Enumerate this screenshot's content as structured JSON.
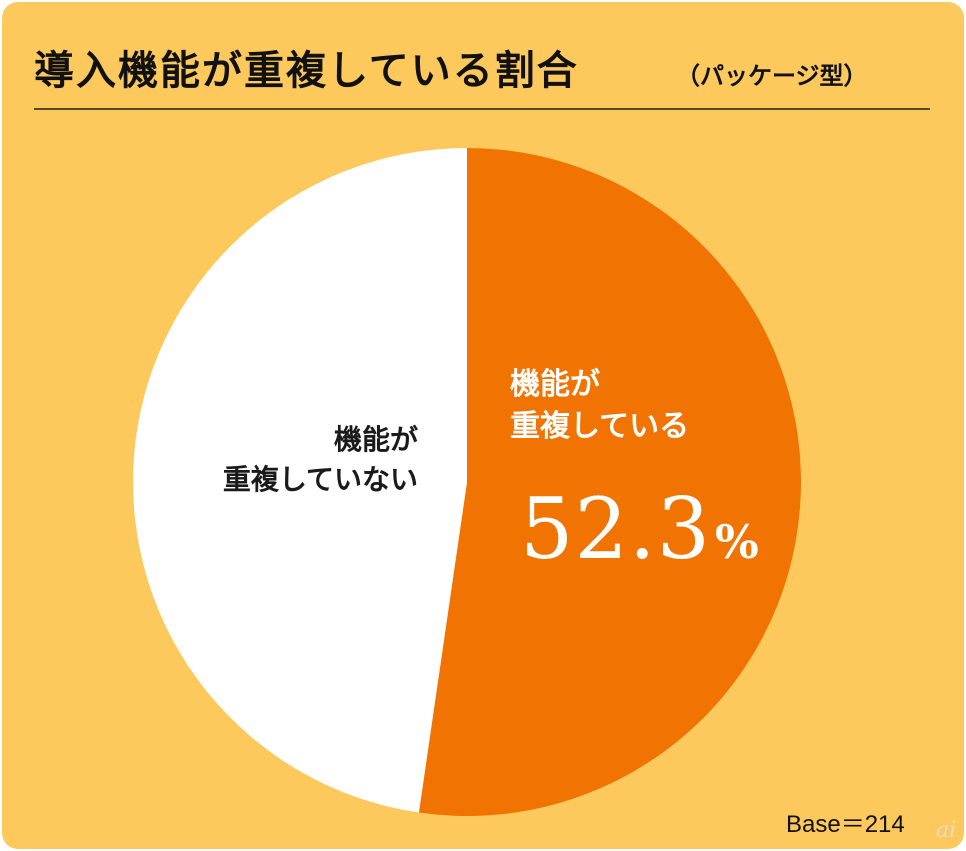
{
  "chart_data": {
    "type": "pie",
    "title": "導入機能が重複している割合",
    "subtitle": "（パッケージ型）",
    "slices": [
      {
        "label_lines": [
          "機能が",
          "重複している"
        ],
        "value": 52.3,
        "value_text": "52.3",
        "unit": "%",
        "color": "#f17302"
      },
      {
        "label_lines": [
          "機能が",
          "重複していない"
        ],
        "value": 47.7,
        "color": "#ffffff"
      }
    ],
    "base_note": "Base＝214"
  },
  "background_color": "#fdc95c",
  "watermark": "ai"
}
